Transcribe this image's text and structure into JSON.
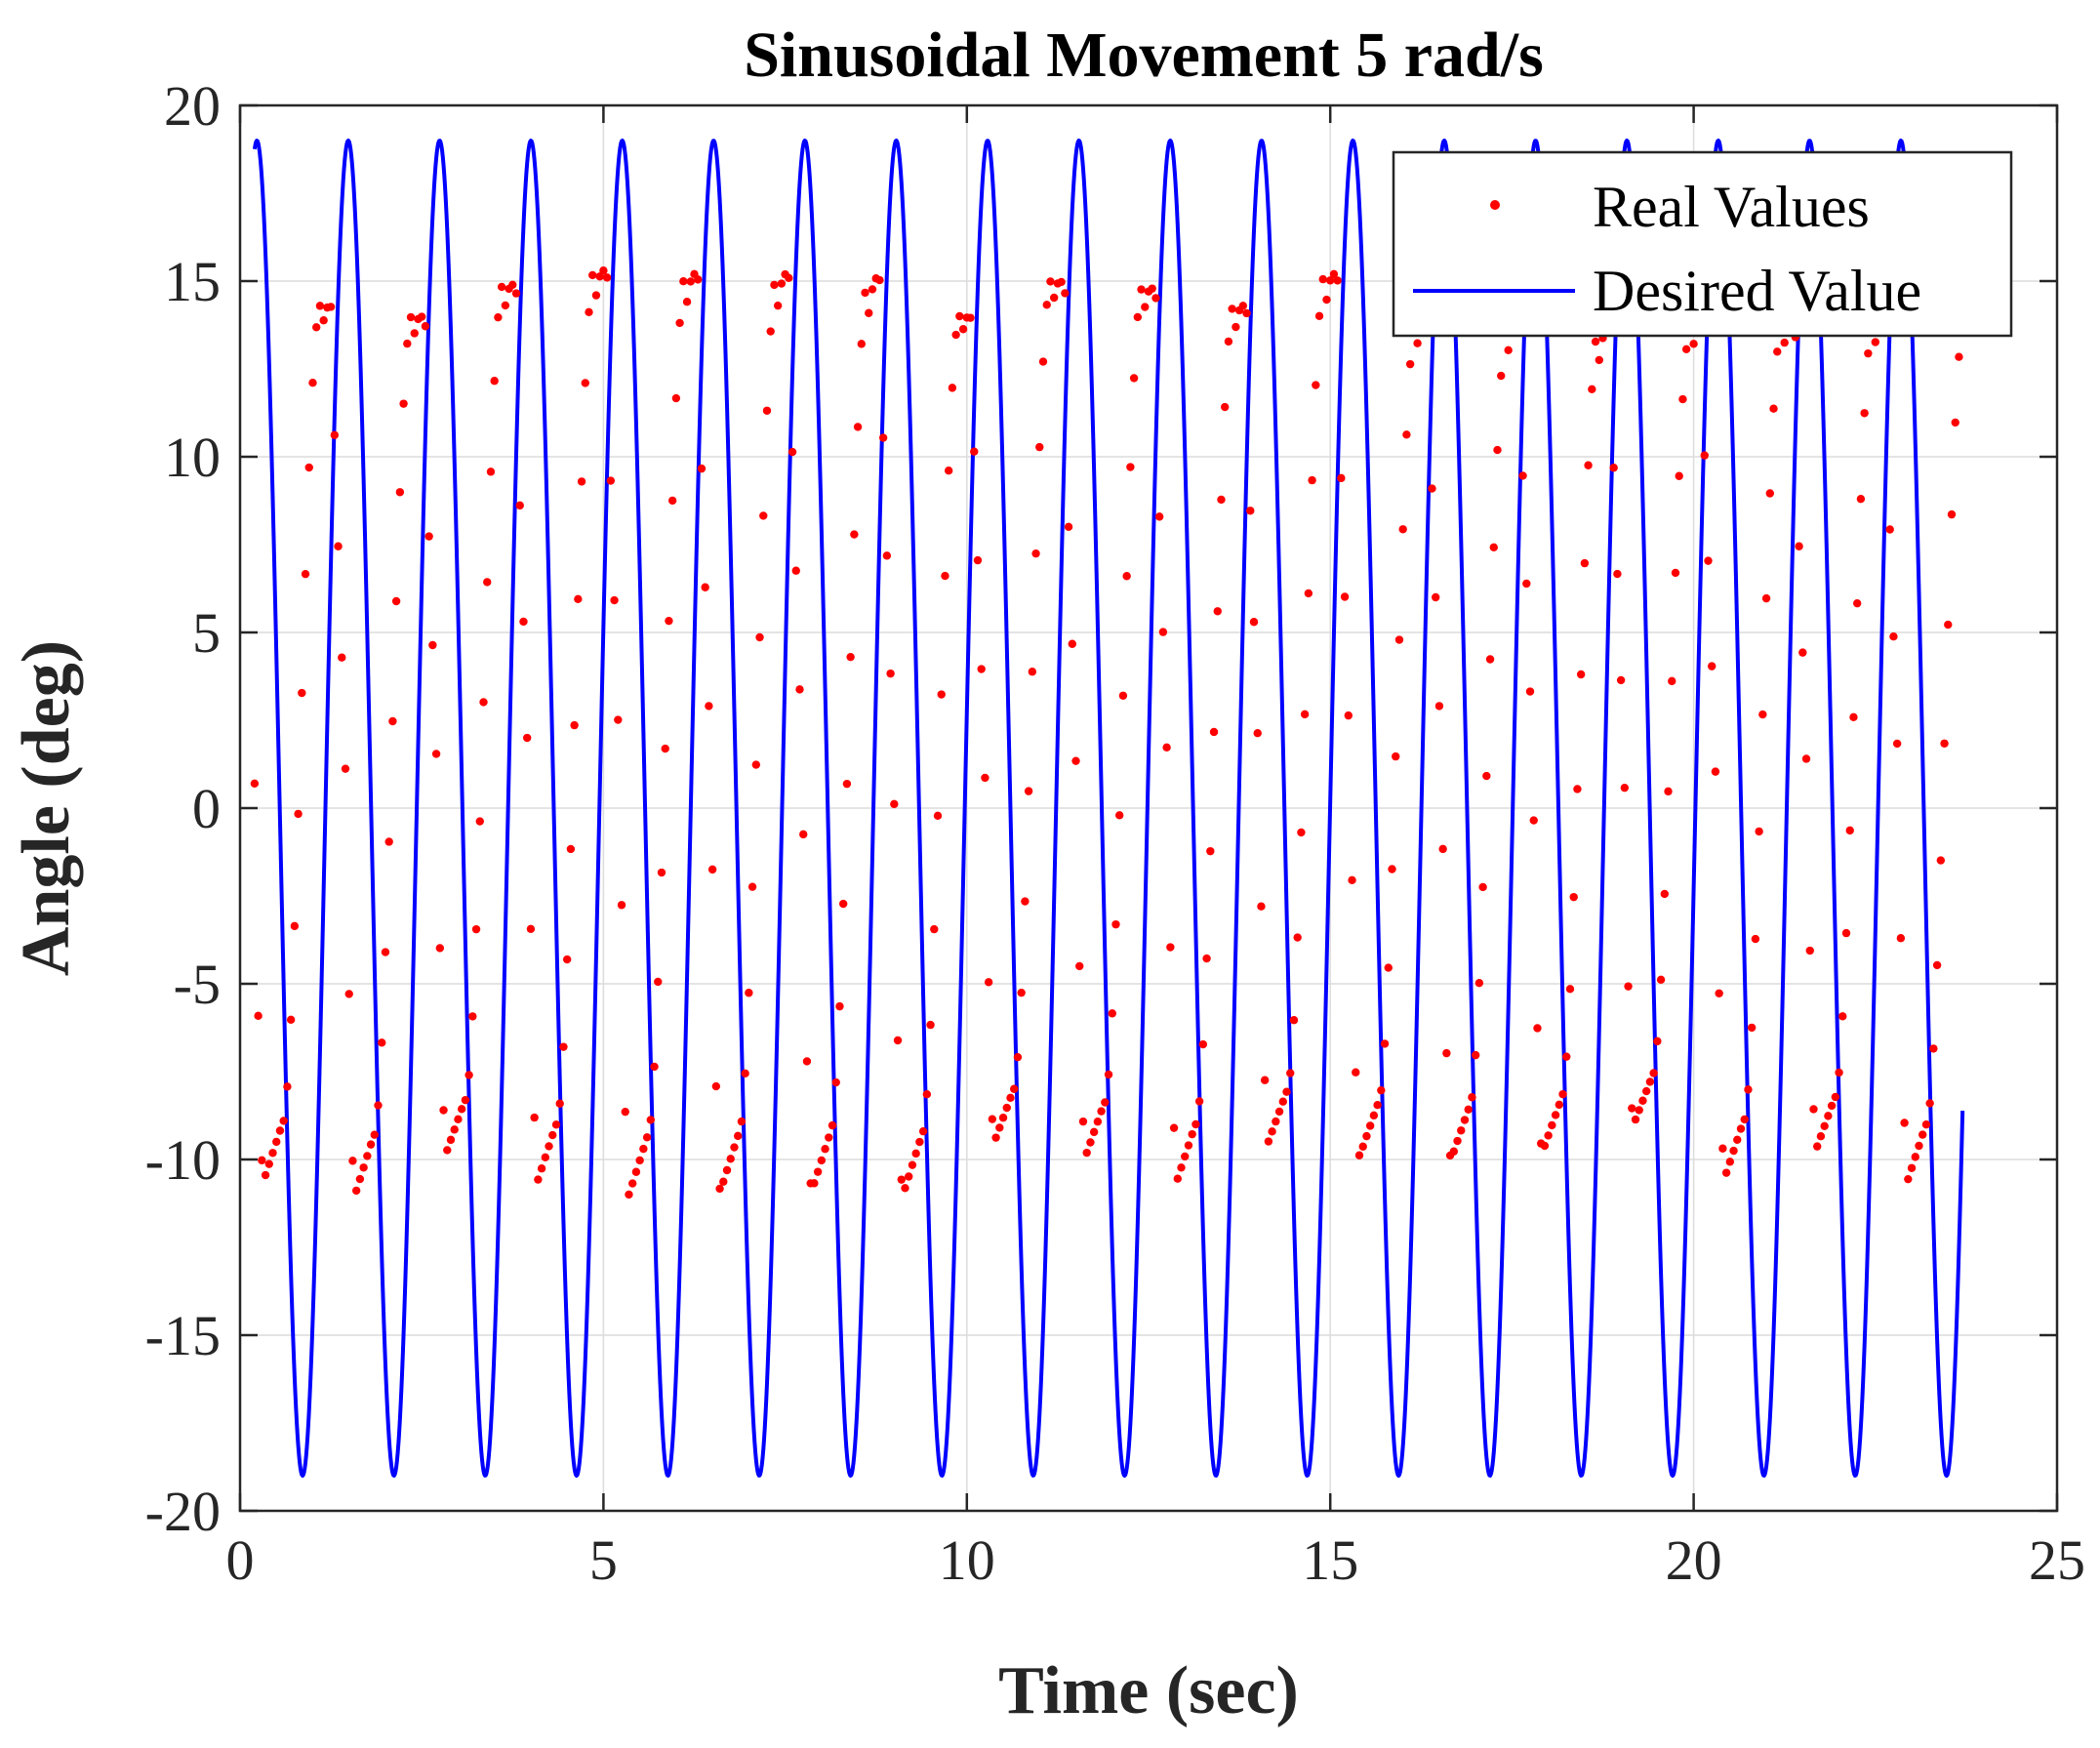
{
  "chart_data": {
    "type": "line",
    "title": "Sinusoidal Movement 5 rad/s",
    "xlabel": "Time (sec)",
    "ylabel": "Angle (deg)",
    "xlim": [
      0,
      25
    ],
    "ylim": [
      -20,
      20
    ],
    "xticks": [
      0,
      5,
      10,
      15,
      20,
      25
    ],
    "yticks": [
      -20,
      -15,
      -10,
      -5,
      0,
      5,
      10,
      15,
      20
    ],
    "grid": true,
    "legend_position": "top-right",
    "colors": {
      "real": "#ff0000",
      "desired": "#0000ff"
    },
    "series": [
      {
        "name": "Desired Value",
        "style": "line",
        "function": "amplitude*sin(omega*t + phase)",
        "amplitude": 19,
        "omega": 5,
        "phase": 0.41,
        "t_start": 0.2,
        "t_end": 23.7,
        "step": 0.01
      },
      {
        "name": "Real Values",
        "style": "points",
        "sample_step": 0.05,
        "t_start": 0.2,
        "t_end": 23.7,
        "cycles": [
          {
            "t_start": 0.2,
            "max": 14.3,
            "min": -10.6
          },
          {
            "t_start": 1.457,
            "max": 14.0,
            "min": -11.0
          },
          {
            "t_start": 2.713,
            "max": 14.9,
            "min": -9.8
          },
          {
            "t_start": 3.97,
            "max": 15.3,
            "min": -10.6
          },
          {
            "t_start": 5.226,
            "max": 15.2,
            "min": -11.0
          },
          {
            "t_start": 6.483,
            "max": 15.2,
            "min": -10.9
          },
          {
            "t_start": 7.74,
            "max": 15.1,
            "min": -10.9
          },
          {
            "t_start": 8.996,
            "max": 14.0,
            "min": -11.0
          },
          {
            "t_start": 10.253,
            "max": 15.0,
            "min": -9.5
          },
          {
            "t_start": 11.509,
            "max": 14.8,
            "min": -9.9
          },
          {
            "t_start": 12.766,
            "max": 14.3,
            "min": -10.6
          },
          {
            "t_start": 14.022,
            "max": 15.2,
            "min": -9.5
          },
          {
            "t_start": 15.279,
            "max": 14.0,
            "min": -9.9
          },
          {
            "t_start": 16.536,
            "max": 13.9,
            "min": -10.0
          },
          {
            "t_start": 17.792,
            "max": 13.7,
            "min": -9.8
          },
          {
            "t_start": 19.049,
            "max": 13.6,
            "min": -9.0
          },
          {
            "t_start": 20.305,
            "max": 13.7,
            "min": -10.5
          },
          {
            "t_start": 21.562,
            "max": 13.8,
            "min": -9.7
          },
          {
            "t_start": 22.818,
            "max": 13.9,
            "min": -10.6
          }
        ]
      }
    ]
  }
}
